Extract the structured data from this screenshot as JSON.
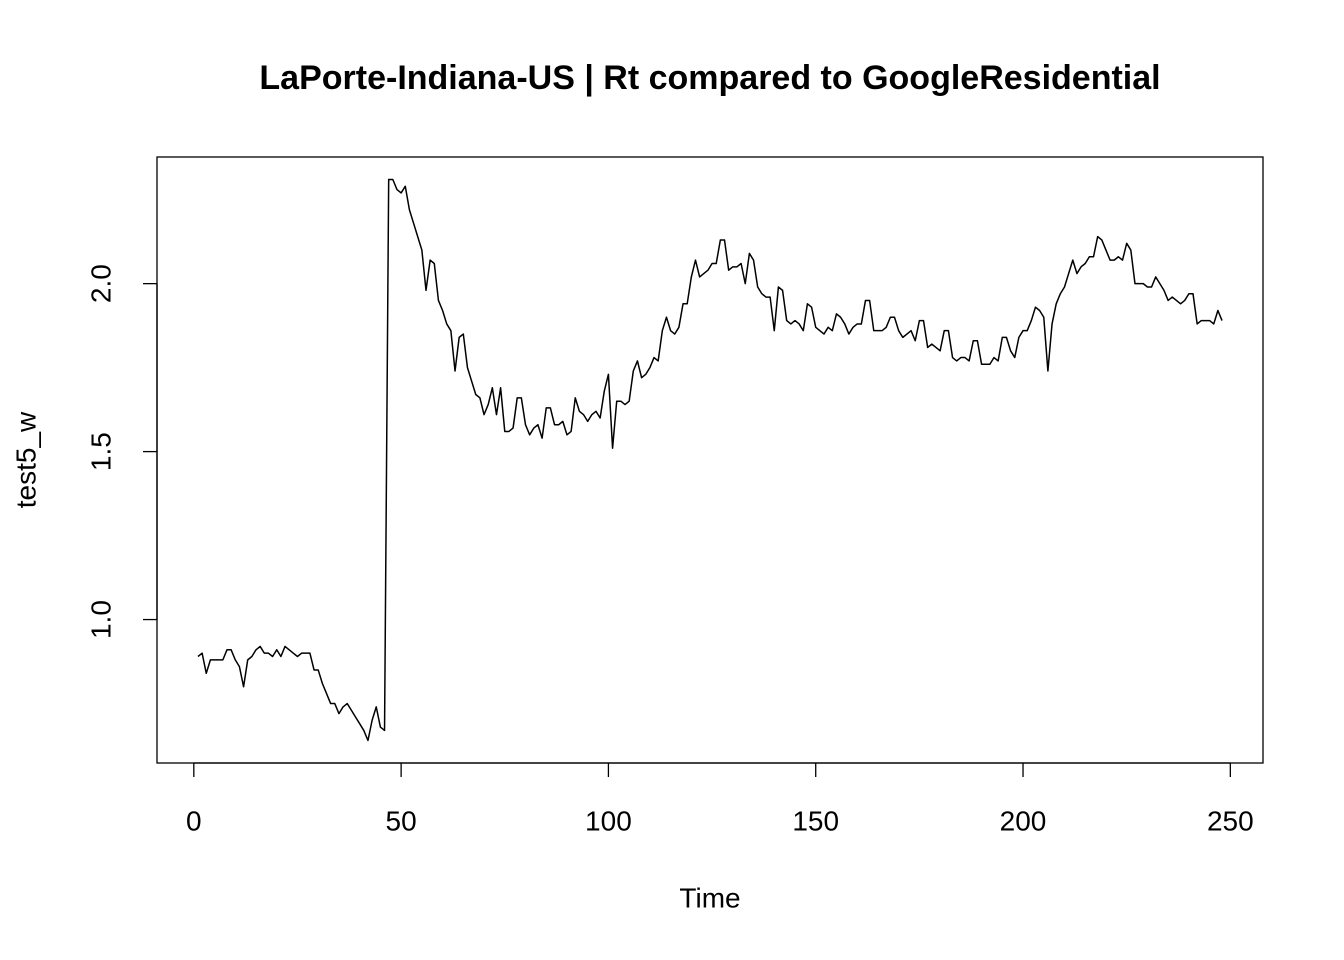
{
  "chart_data": {
    "type": "line",
    "title": "LaPorte-Indiana-US | Rt compared to GoogleResidential",
    "xlabel": "Time",
    "ylabel": "test5_w",
    "color": "#000000",
    "xlim": [
      -8.88,
      257.88
    ],
    "ylim": [
      0.573,
      2.377
    ],
    "xticks": [
      0,
      50,
      100,
      150,
      200,
      250
    ],
    "yticks": [
      {
        "value": 1.0,
        "label": "1.0"
      },
      {
        "value": 1.5,
        "label": "1.5"
      },
      {
        "value": 2.0,
        "label": "2.0"
      }
    ],
    "x": [
      1,
      2,
      3,
      4,
      5,
      6,
      7,
      8,
      9,
      10,
      11,
      12,
      13,
      14,
      15,
      16,
      17,
      18,
      19,
      20,
      21,
      22,
      23,
      24,
      25,
      26,
      27,
      28,
      29,
      30,
      31,
      32,
      33,
      34,
      35,
      36,
      37,
      38,
      39,
      40,
      41,
      42,
      43,
      44,
      45,
      46,
      47,
      48,
      49,
      50,
      51,
      52,
      53,
      54,
      55,
      56,
      57,
      58,
      59,
      60,
      61,
      62,
      63,
      64,
      65,
      66,
      67,
      68,
      69,
      70,
      71,
      72,
      73,
      74,
      75,
      76,
      77,
      78,
      79,
      80,
      81,
      82,
      83,
      84,
      85,
      86,
      87,
      88,
      89,
      90,
      91,
      92,
      93,
      94,
      95,
      96,
      97,
      98,
      99,
      100,
      101,
      102,
      103,
      104,
      105,
      106,
      107,
      108,
      109,
      110,
      111,
      112,
      113,
      114,
      115,
      116,
      117,
      118,
      119,
      120,
      121,
      122,
      123,
      124,
      125,
      126,
      127,
      128,
      129,
      130,
      131,
      132,
      133,
      134,
      135,
      136,
      137,
      138,
      139,
      140,
      141,
      142,
      143,
      144,
      145,
      146,
      147,
      148,
      149,
      150,
      151,
      152,
      153,
      154,
      155,
      156,
      157,
      158,
      159,
      160,
      161,
      162,
      163,
      164,
      165,
      166,
      167,
      168,
      169,
      170,
      171,
      172,
      173,
      174,
      175,
      176,
      177,
      178,
      179,
      180,
      181,
      182,
      183,
      184,
      185,
      186,
      187,
      188,
      189,
      190,
      191,
      192,
      193,
      194,
      195,
      196,
      197,
      198,
      199,
      200,
      201,
      202,
      203,
      204,
      205,
      206,
      207,
      208,
      209,
      210,
      211,
      212,
      213,
      214,
      215,
      216,
      217,
      218,
      219,
      220,
      221,
      222,
      223,
      224,
      225,
      226,
      227,
      228,
      229,
      230,
      231,
      232,
      233,
      234,
      235,
      236,
      237,
      238,
      239,
      240,
      241,
      242,
      243,
      244,
      245,
      246,
      247,
      248
    ],
    "values": [
      0.89,
      0.9,
      0.84,
      0.88,
      0.88,
      0.88,
      0.88,
      0.91,
      0.91,
      0.88,
      0.86,
      0.8,
      0.88,
      0.89,
      0.91,
      0.92,
      0.9,
      0.9,
      0.89,
      0.91,
      0.89,
      0.92,
      0.91,
      0.9,
      0.89,
      0.9,
      0.9,
      0.9,
      0.85,
      0.85,
      0.81,
      0.78,
      0.75,
      0.75,
      0.72,
      0.74,
      0.75,
      0.73,
      0.71,
      0.69,
      0.67,
      0.64,
      0.7,
      0.74,
      0.68,
      0.67,
      2.31,
      2.31,
      2.28,
      2.27,
      2.29,
      2.22,
      2.18,
      2.14,
      2.1,
      1.98,
      2.07,
      2.06,
      1.95,
      1.92,
      1.88,
      1.86,
      1.74,
      1.84,
      1.85,
      1.75,
      1.71,
      1.67,
      1.66,
      1.61,
      1.64,
      1.69,
      1.61,
      1.69,
      1.56,
      1.56,
      1.57,
      1.66,
      1.66,
      1.58,
      1.55,
      1.57,
      1.58,
      1.54,
      1.63,
      1.63,
      1.58,
      1.58,
      1.59,
      1.55,
      1.56,
      1.66,
      1.62,
      1.61,
      1.59,
      1.61,
      1.62,
      1.6,
      1.68,
      1.73,
      1.51,
      1.65,
      1.65,
      1.64,
      1.65,
      1.74,
      1.77,
      1.72,
      1.73,
      1.75,
      1.78,
      1.77,
      1.86,
      1.9,
      1.86,
      1.85,
      1.87,
      1.94,
      1.94,
      2.02,
      2.07,
      2.02,
      2.03,
      2.04,
      2.06,
      2.06,
      2.13,
      2.13,
      2.04,
      2.05,
      2.05,
      2.06,
      2.0,
      2.09,
      2.07,
      1.99,
      1.97,
      1.96,
      1.96,
      1.86,
      1.99,
      1.98,
      1.89,
      1.88,
      1.89,
      1.88,
      1.86,
      1.94,
      1.93,
      1.87,
      1.86,
      1.85,
      1.87,
      1.86,
      1.91,
      1.9,
      1.88,
      1.85,
      1.87,
      1.88,
      1.88,
      1.95,
      1.95,
      1.86,
      1.86,
      1.86,
      1.87,
      1.9,
      1.9,
      1.86,
      1.84,
      1.85,
      1.86,
      1.83,
      1.89,
      1.89,
      1.81,
      1.82,
      1.81,
      1.8,
      1.86,
      1.86,
      1.78,
      1.77,
      1.78,
      1.78,
      1.77,
      1.83,
      1.83,
      1.76,
      1.76,
      1.76,
      1.78,
      1.77,
      1.84,
      1.84,
      1.8,
      1.78,
      1.84,
      1.86,
      1.86,
      1.89,
      1.93,
      1.92,
      1.9,
      1.74,
      1.88,
      1.94,
      1.97,
      1.99,
      2.03,
      2.07,
      2.03,
      2.05,
      2.06,
      2.08,
      2.08,
      2.14,
      2.13,
      2.1,
      2.07,
      2.07,
      2.08,
      2.07,
      2.12,
      2.1,
      2.0,
      2.0,
      2.0,
      1.99,
      1.99,
      2.02,
      2.0,
      1.98,
      1.95,
      1.96,
      1.95,
      1.94,
      1.95,
      1.97,
      1.97,
      1.88,
      1.89,
      1.89,
      1.89,
      1.88,
      1.92,
      1.89
    ]
  }
}
